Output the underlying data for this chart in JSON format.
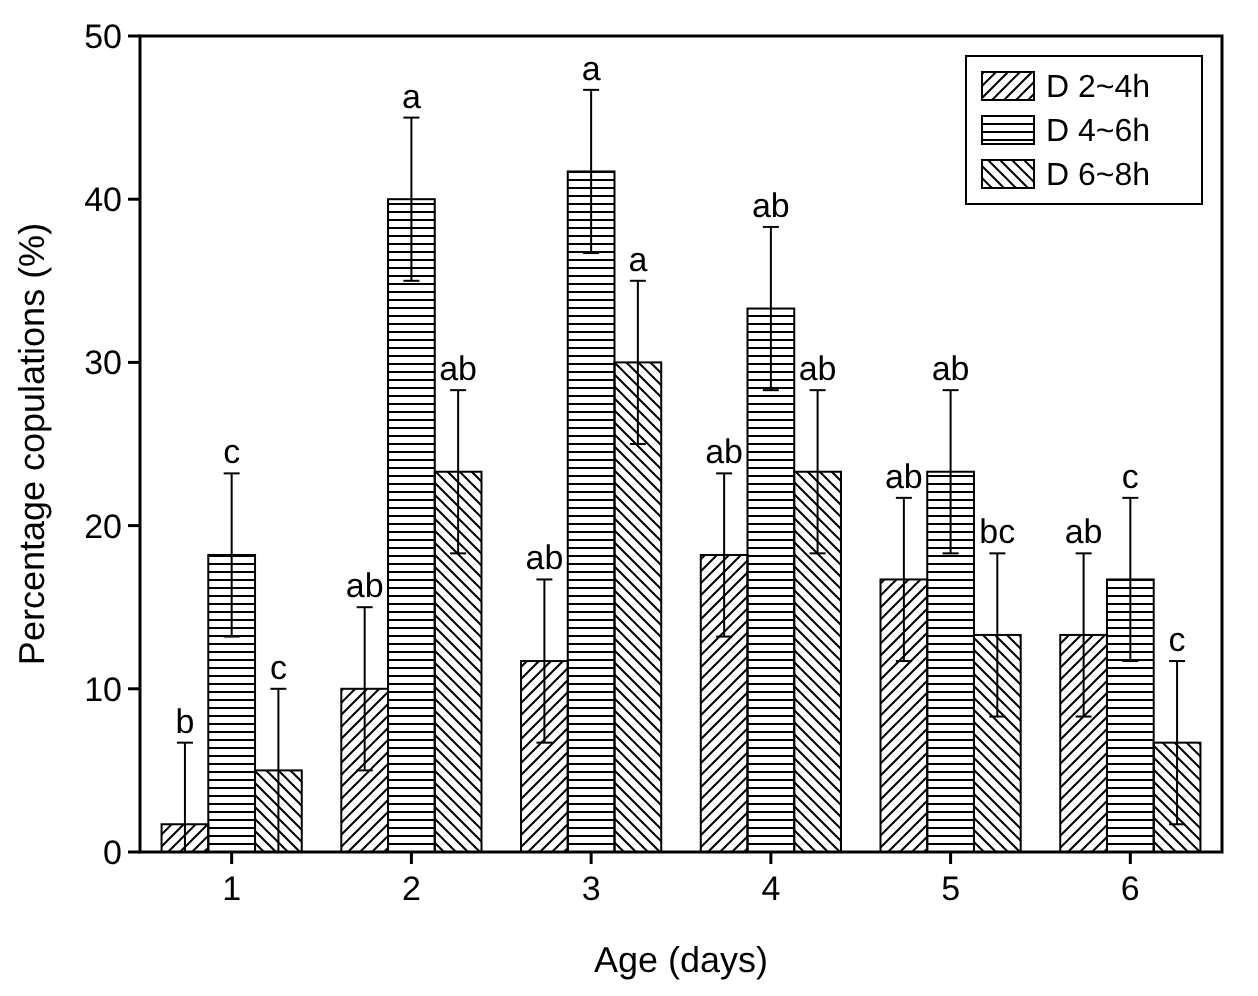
{
  "chart_data": {
    "type": "bar",
    "xlabel": "Age (days)",
    "ylabel": "Percentage  copulations (%)",
    "categories": [
      "1",
      "2",
      "3",
      "4",
      "5",
      "6"
    ],
    "series": [
      {
        "name": "D 2~4h",
        "color": "#000000",
        "values": [
          1.7,
          10,
          11.7,
          18.2,
          16.7,
          13.3
        ],
        "errors": [
          [
            0,
            6.7
          ],
          5,
          5,
          5,
          5,
          5
        ]
      },
      {
        "name": "D 4~6h",
        "color": "#000000",
        "values": [
          18.2,
          40,
          41.7,
          33.3,
          23.3,
          16.7
        ],
        "errors": [
          5,
          5,
          5,
          5,
          5,
          5
        ]
      },
      {
        "name": "D 6~8h",
        "color": "#000000",
        "values": [
          5,
          23.3,
          30,
          23.3,
          13.3,
          6.7
        ],
        "errors": [
          5,
          5,
          5,
          5,
          5,
          5
        ]
      }
    ],
    "ylim": [
      0,
      50
    ],
    "yticks": [
      0,
      10,
      20,
      30,
      40,
      50
    ],
    "legend": "top right",
    "annotations": [
      "b",
      "c",
      "c",
      "ab",
      "a",
      "ab",
      "ab",
      "a",
      "a",
      "ab",
      "ab",
      "ab",
      "ab",
      "ab",
      "bc",
      "ab",
      "c",
      "c"
    ]
  }
}
